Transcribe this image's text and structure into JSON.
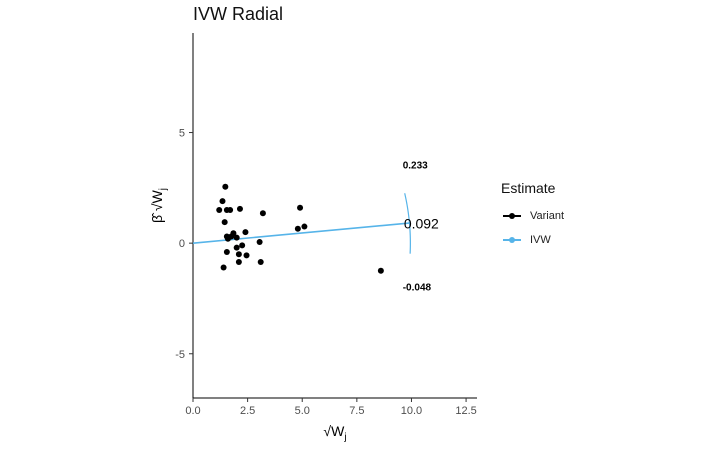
{
  "chart_data": {
    "type": "scatter",
    "title": "IVW Radial",
    "xlabel": "√W",
    "xlabel_sub": "j",
    "ylabel": "β̂ √W",
    "ylabel_sub_beta": "j",
    "ylabel_sub_w": "j",
    "xlim": [
      0,
      13
    ],
    "ylim": [
      -7,
      9.5
    ],
    "xticks": [
      0,
      2.5,
      5,
      7.5,
      10,
      12.5
    ],
    "xtick_labels": [
      "0.0",
      "2.5",
      "5.0",
      "7.5",
      "10.0",
      "12.5"
    ],
    "yticks": [
      -5,
      0,
      5
    ],
    "ytick_labels": [
      "-5",
      "0",
      "5"
    ],
    "grid": false,
    "legend": {
      "title": "Estimate",
      "position": "right",
      "items": [
        {
          "label": "Variant",
          "color": "#000000"
        },
        {
          "label": "IVW",
          "color": "#56B4E9"
        }
      ]
    },
    "series": [
      {
        "name": "Variant",
        "type": "scatter",
        "color": "#000000",
        "points": [
          [
            1.48,
            2.55
          ],
          [
            1.35,
            1.9
          ],
          [
            1.2,
            1.5
          ],
          [
            1.55,
            1.5
          ],
          [
            1.7,
            1.5
          ],
          [
            2.15,
            1.55
          ],
          [
            3.2,
            1.35
          ],
          [
            1.45,
            0.95
          ],
          [
            1.85,
            0.45
          ],
          [
            2.4,
            0.5
          ],
          [
            1.55,
            0.3
          ],
          [
            1.75,
            0.3
          ],
          [
            2.0,
            0.25
          ],
          [
            1.6,
            0.2
          ],
          [
            3.05,
            0.05
          ],
          [
            2.25,
            -0.1
          ],
          [
            2.0,
            -0.2
          ],
          [
            1.55,
            -0.4
          ],
          [
            2.1,
            -0.5
          ],
          [
            2.45,
            -0.55
          ],
          [
            2.1,
            -0.85
          ],
          [
            3.1,
            -0.85
          ],
          [
            1.4,
            -1.1
          ],
          [
            4.9,
            1.6
          ],
          [
            4.8,
            0.65
          ],
          [
            5.1,
            0.75
          ],
          [
            8.6,
            -1.25
          ]
        ]
      },
      {
        "name": "IVW",
        "type": "line",
        "color": "#56B4E9",
        "slope": 0.092,
        "x_range": [
          0,
          9.95
        ]
      }
    ],
    "radial_arc": {
      "color": "#56B4E9",
      "radius": 9.95,
      "slope_range": [
        -0.048,
        0.233
      ]
    },
    "annotations": [
      {
        "text": "0.233",
        "x": 9.6,
        "y": 3.55,
        "style": "small"
      },
      {
        "text": "0.092",
        "x": 9.65,
        "y": 0.88,
        "style": "estimate"
      },
      {
        "text": "-0.048",
        "x": 9.6,
        "y": -1.95,
        "style": "small"
      }
    ]
  }
}
